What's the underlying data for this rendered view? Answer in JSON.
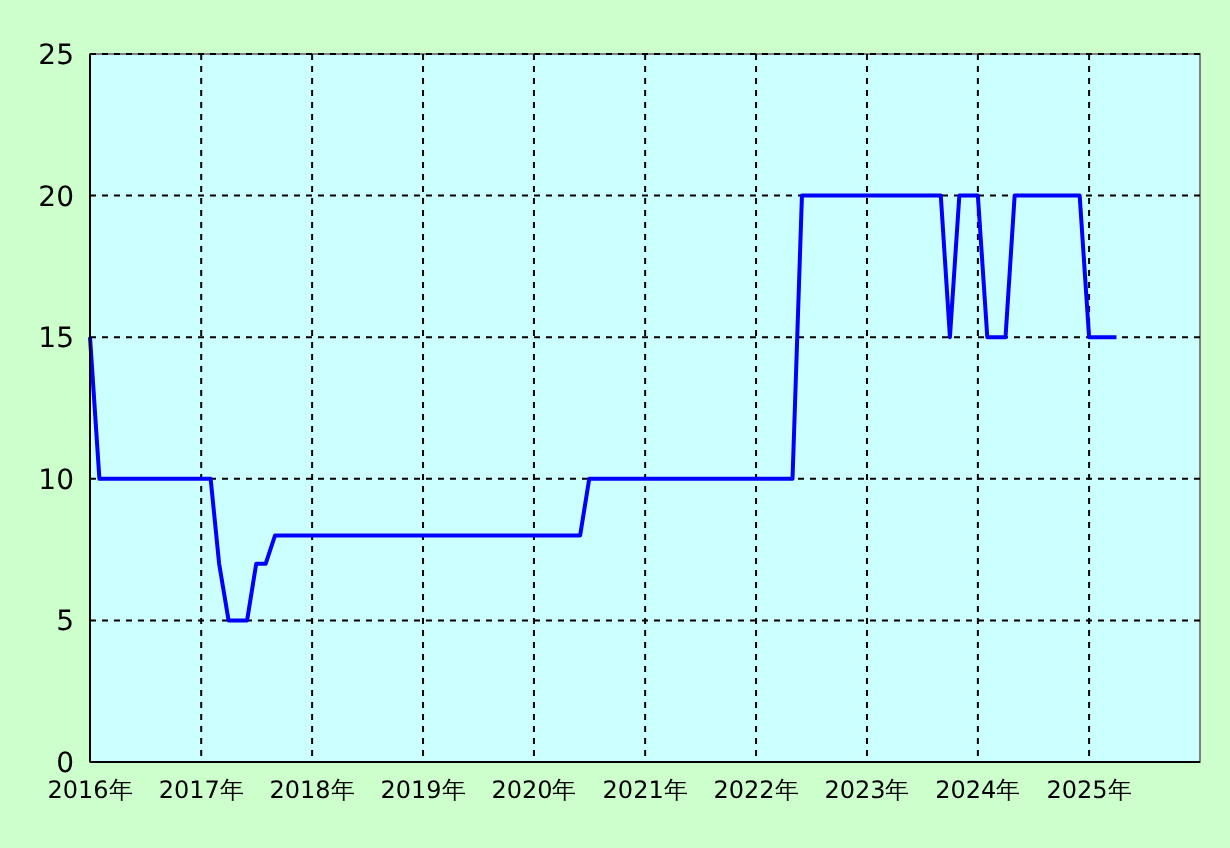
{
  "chart_data": {
    "type": "line",
    "x": [
      "2016-01",
      "2016-02",
      "2017-02",
      "2017-03",
      "2017-04",
      "2017-06",
      "2017-07",
      "2017-08",
      "2017-09",
      "2020-06",
      "2020-07",
      "2022-05",
      "2022-06",
      "2023-09",
      "2023-10",
      "2023-11",
      "2023-12",
      "2024-01",
      "2024-02",
      "2024-04",
      "2024-05",
      "2024-12",
      "2025-01",
      "2025-04"
    ],
    "series": [
      {
        "color": "#0000ff",
        "values": [
          15,
          10,
          10,
          7,
          5,
          5,
          7,
          7,
          8,
          8,
          10,
          10,
          20,
          20,
          15,
          20,
          20,
          20,
          15,
          15,
          20,
          20,
          15,
          15
        ]
      }
    ],
    "xlim": [
      "2016-01",
      "2026-01"
    ],
    "xticks": [
      {
        "value": "2016",
        "label": "2016年"
      },
      {
        "value": "2017",
        "label": "2017年"
      },
      {
        "value": "2018",
        "label": "2018年"
      },
      {
        "value": "2019",
        "label": "2019年"
      },
      {
        "value": "2020",
        "label": "2020年"
      },
      {
        "value": "2021",
        "label": "2021年"
      },
      {
        "value": "2022",
        "label": "2022年"
      },
      {
        "value": "2023",
        "label": "2023年"
      },
      {
        "value": "2024",
        "label": "2024年"
      },
      {
        "value": "2025",
        "label": "2025年"
      }
    ],
    "ylim": [
      0,
      25
    ],
    "yticks": [
      0,
      5,
      10,
      15,
      20,
      25
    ],
    "grid": true,
    "line_style": "solid"
  }
}
